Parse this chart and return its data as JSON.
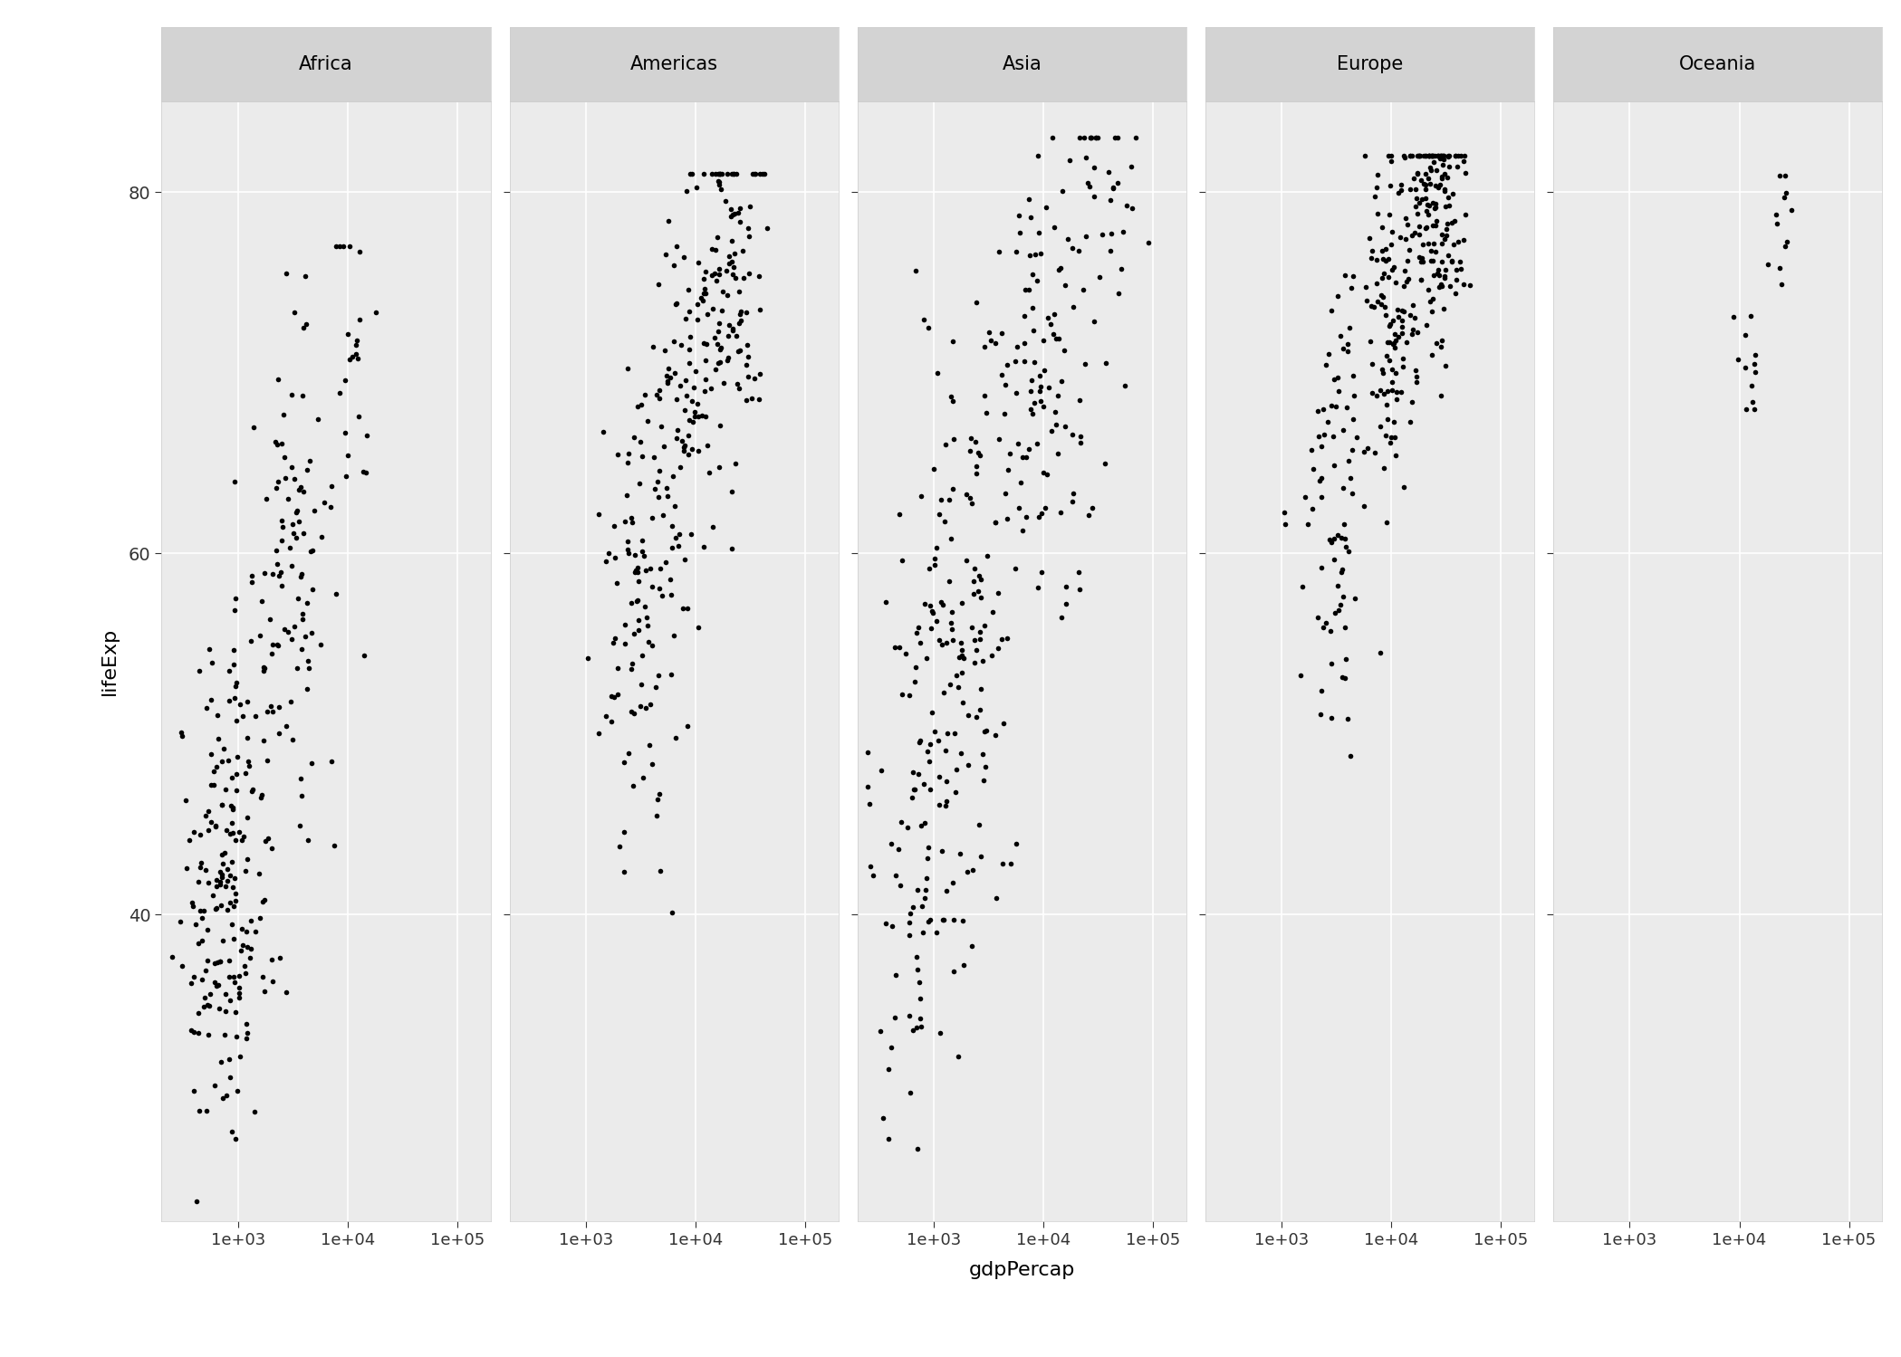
{
  "title": "",
  "xlabel": "gdpPercap",
  "ylabel": "lifeExp",
  "continents": [
    "Africa",
    "Americas",
    "Asia",
    "Europe",
    "Oceania"
  ],
  "xlim": [
    200,
    200000
  ],
  "ylim": [
    23,
    85
  ],
  "yticks": [
    40,
    60,
    80
  ],
  "xticks": [
    1000,
    10000,
    100000
  ],
  "xtick_labels": [
    "1e+03",
    "1e+04",
    "1e+05"
  ],
  "bg_color": "#EBEBEB",
  "panel_bg": "#EBEBEB",
  "strip_bg": "#D3D3D3",
  "grid_color": "white",
  "dot_color": "black",
  "dot_size": 4,
  "font_family": "DejaVu Sans"
}
